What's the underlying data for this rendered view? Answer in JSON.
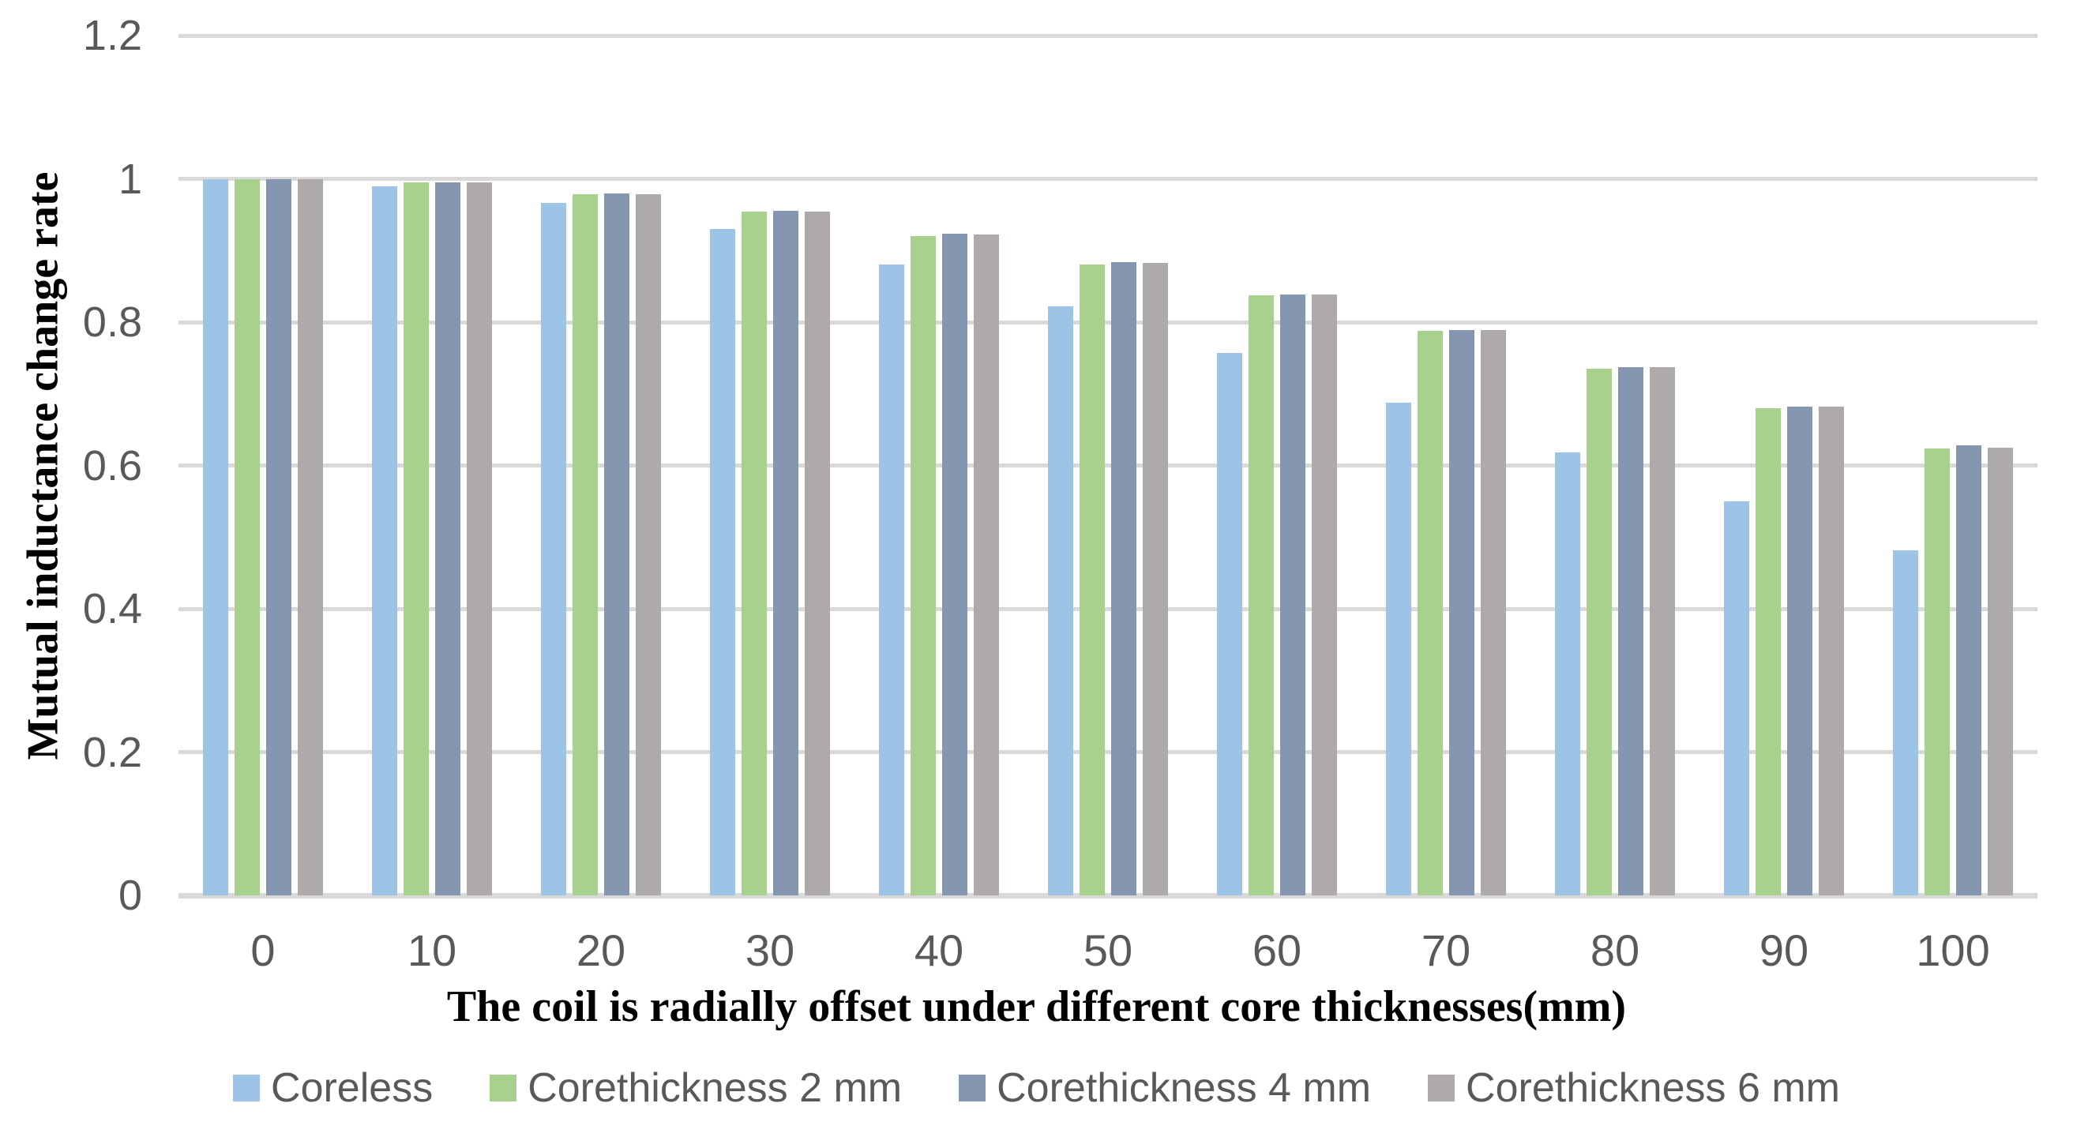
{
  "chart_data": {
    "type": "bar",
    "title": "",
    "xlabel": "The coil is radially offset under different core thicknesses(mm)",
    "ylabel": "Mutual inductance change rate",
    "categories": [
      "0",
      "10",
      "20",
      "30",
      "40",
      "50",
      "60",
      "70",
      "80",
      "90",
      "100"
    ],
    "y_ticks": [
      {
        "label": "0",
        "value": 0.0
      },
      {
        "label": "0.2",
        "value": 0.2
      },
      {
        "label": "0.4",
        "value": 0.4
      },
      {
        "label": "0.6",
        "value": 0.6
      },
      {
        "label": "0.8",
        "value": 0.8
      },
      {
        "label": "1",
        "value": 1.0
      },
      {
        "label": "1.2",
        "value": 1.2
      }
    ],
    "ylim": [
      0,
      1.2
    ],
    "grid": "horizontal",
    "legend_position": "bottom",
    "series": [
      {
        "name": "Coreless",
        "color": "#9DC3E6",
        "values": [
          1.0,
          0.99,
          0.966,
          0.93,
          0.88,
          0.822,
          0.757,
          0.688,
          0.618,
          0.55,
          0.482
        ]
      },
      {
        "name": "Corethickness 2 mm",
        "color": "#A9D18E",
        "values": [
          1.0,
          0.995,
          0.978,
          0.954,
          0.92,
          0.881,
          0.838,
          0.788,
          0.735,
          0.68,
          0.624
        ]
      },
      {
        "name": "Corethickness 4 mm",
        "color": "#8496B0",
        "values": [
          1.0,
          0.995,
          0.98,
          0.955,
          0.923,
          0.884,
          0.839,
          0.789,
          0.737,
          0.682,
          0.628
        ]
      },
      {
        "name": "Corethickness 6 mm",
        "color": "#AEAAAA",
        "values": [
          1.0,
          0.995,
          0.979,
          0.954,
          0.922,
          0.883,
          0.839,
          0.789,
          0.737,
          0.682,
          0.625
        ]
      }
    ],
    "colors": {
      "gridline": "#D9D9D9",
      "tick_text": "#595959",
      "axis_title_text": "#000000"
    }
  }
}
